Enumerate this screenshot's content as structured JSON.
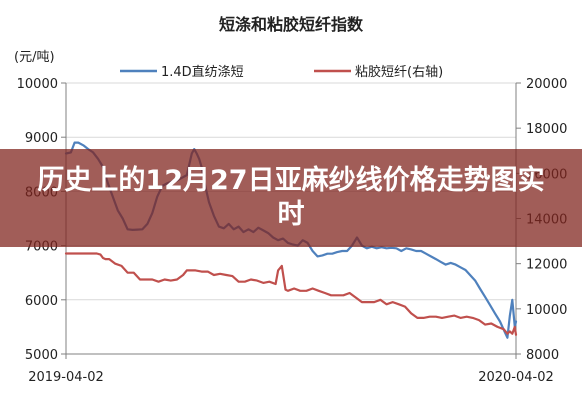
{
  "chart_data": {
    "type": "line",
    "title": "短涤和粘胶短纤指数",
    "y_unit_label": "(元/吨)",
    "x_tick_labels": [
      "2019-04-02",
      "2020-04-02"
    ],
    "y_left": {
      "min": 5000,
      "max": 10000,
      "ticks": [
        "10000",
        "9000",
        "8000",
        "7000",
        "6000",
        "5000"
      ]
    },
    "y_right": {
      "min": 8000,
      "max": 20000,
      "ticks": [
        "20000",
        "18000",
        "16000",
        "14000",
        "12000",
        "10000",
        "8000"
      ]
    },
    "x": {
      "min": 0,
      "max": 365
    },
    "series": [
      {
        "name": "1.4D直纺涤短",
        "axis": "left",
        "color": "#4f81bd",
        "x": [
          0,
          4,
          7,
          10,
          14,
          18,
          22,
          26,
          30,
          34,
          38,
          42,
          46,
          50,
          54,
          58,
          62,
          66,
          70,
          74,
          78,
          82,
          86,
          90,
          94,
          98,
          102,
          104,
          106,
          108,
          110,
          112,
          114,
          116,
          120,
          124,
          128,
          132,
          136,
          140,
          144,
          148,
          152,
          156,
          160,
          164,
          168,
          172,
          176,
          180,
          184,
          188,
          192,
          196,
          200,
          204,
          208,
          212,
          216,
          220,
          224,
          228,
          232,
          236,
          240,
          244,
          248,
          252,
          256,
          260,
          264,
          268,
          272,
          276,
          280,
          284,
          288,
          292,
          296,
          300,
          304,
          308,
          312,
          316,
          320,
          324,
          328,
          332,
          336,
          340,
          344,
          348,
          352,
          356,
          358,
          360,
          362,
          364,
          365
        ],
        "values": [
          8700,
          8720,
          8900,
          8900,
          8850,
          8780,
          8720,
          8600,
          8450,
          8150,
          7900,
          7650,
          7500,
          7300,
          7290,
          7295,
          7300,
          7400,
          7600,
          7900,
          8100,
          8150,
          8180,
          8200,
          8250,
          8300,
          8700,
          8780,
          8700,
          8600,
          8450,
          8200,
          8000,
          7800,
          7550,
          7350,
          7320,
          7400,
          7300,
          7350,
          7250,
          7300,
          7250,
          7330,
          7280,
          7230,
          7150,
          7100,
          7130,
          7050,
          7020,
          7000,
          7100,
          7050,
          6900,
          6800,
          6820,
          6850,
          6850,
          6880,
          6900,
          6900,
          7000,
          7150,
          7000,
          6950,
          6980,
          6950,
          6970,
          6950,
          6960,
          6950,
          6900,
          6950,
          6930,
          6900,
          6900,
          6850,
          6800,
          6750,
          6700,
          6650,
          6680,
          6650,
          6600,
          6550,
          6450,
          6350,
          6200,
          6050,
          5900,
          5750,
          5600,
          5400,
          5300,
          5700,
          6000,
          5500,
          5600
        ]
      },
      {
        "name": "粘胶短纤(右轴)",
        "axis": "right",
        "color": "#c0504d",
        "x": [
          0,
          5,
          10,
          15,
          20,
          25,
          28,
          30,
          32,
          35,
          40,
          45,
          50,
          55,
          60,
          65,
          70,
          75,
          80,
          85,
          90,
          95,
          98,
          100,
          105,
          110,
          115,
          120,
          125,
          130,
          135,
          140,
          145,
          150,
          155,
          160,
          165,
          170,
          172,
          175,
          178,
          180,
          185,
          190,
          195,
          200,
          205,
          210,
          215,
          220,
          225,
          230,
          235,
          240,
          245,
          250,
          255,
          260,
          265,
          270,
          275,
          280,
          285,
          290,
          295,
          300,
          305,
          310,
          315,
          320,
          325,
          330,
          335,
          340,
          345,
          350,
          355,
          358,
          360,
          362,
          364,
          365
        ],
        "values": [
          12450,
          12450,
          12450,
          12450,
          12450,
          12450,
          12400,
          12250,
          12200,
          12200,
          12000,
          11900,
          11600,
          11600,
          11300,
          11300,
          11300,
          11200,
          11300,
          11250,
          11300,
          11500,
          11700,
          11700,
          11700,
          11650,
          11650,
          11500,
          11550,
          11500,
          11450,
          11200,
          11200,
          11300,
          11250,
          11150,
          11200,
          11100,
          11700,
          11900,
          10850,
          10800,
          10900,
          10800,
          10800,
          10900,
          10800,
          10700,
          10600,
          10600,
          10600,
          10700,
          10500,
          10300,
          10300,
          10300,
          10400,
          10200,
          10300,
          10200,
          10100,
          9800,
          9600,
          9600,
          9650,
          9650,
          9600,
          9650,
          9700,
          9600,
          9650,
          9600,
          9500,
          9300,
          9350,
          9200,
          9100,
          8900,
          9000,
          8900,
          9200,
          8850
        ]
      }
    ]
  },
  "overlay": {
    "headline": "历史上的12月27日亚麻纱线价格走势图实时"
  }
}
